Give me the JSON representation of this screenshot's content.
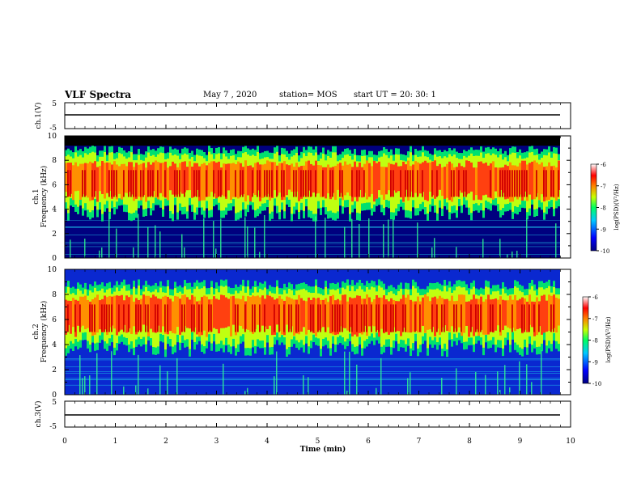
{
  "header": {
    "title": "VLF Spectra",
    "date": "May 7 , 2020",
    "station": "station= MOS",
    "start": "start UT = 20: 30: 1"
  },
  "chart_data": [
    {
      "type": "line",
      "title": "",
      "ylabel": "ch.1(V)",
      "xlim": [
        0,
        10
      ],
      "ylim": [
        -5,
        5
      ],
      "yticks": [
        "5",
        "-5"
      ],
      "series": [
        {
          "x": [
            0,
            9.8
          ],
          "y": [
            0,
            0
          ]
        }
      ]
    },
    {
      "type": "heatmap",
      "ylabel_line1": "ch.1",
      "ylabel_line2": "Frequency (kHz)",
      "xlim": [
        0,
        10
      ],
      "ylim": [
        0,
        10
      ],
      "yticks": [
        "0",
        "2",
        "4",
        "6",
        "8",
        "10"
      ],
      "colorbar": {
        "label": "log(PSD)(V²/Hz)",
        "range": [
          -10,
          -6
        ],
        "ticks": [
          "-6",
          "-7",
          "-8",
          "-9",
          "-10"
        ]
      }
    },
    {
      "type": "heatmap",
      "ylabel_line1": "ch.2",
      "ylabel_line2": "Frequency (kHz)",
      "xlim": [
        0,
        10
      ],
      "ylim": [
        0,
        10
      ],
      "yticks": [
        "0",
        "2",
        "4",
        "6",
        "8",
        "10"
      ],
      "colorbar": {
        "label": "log(PSD)(V²/Hz)",
        "range": [
          -10,
          -6
        ],
        "ticks": [
          "-6",
          "-7",
          "-8",
          "-9",
          "-10"
        ]
      }
    },
    {
      "type": "line",
      "ylabel": "ch.3(V)",
      "xlim": [
        0,
        10
      ],
      "ylim": [
        -5,
        5
      ],
      "yticks": [
        "5",
        "-5"
      ],
      "series": [
        {
          "x": [
            0,
            9.8
          ],
          "y": [
            0,
            0
          ]
        }
      ]
    }
  ],
  "xaxis": {
    "label": "Time (min)",
    "ticks": [
      "0",
      "1",
      "2",
      "3",
      "4",
      "5",
      "6",
      "7",
      "8",
      "9",
      "10"
    ]
  },
  "colors": {
    "background_ch1": "#00007f",
    "background_ch2": "#0a28d0",
    "band_top_ch1": "#000000"
  }
}
